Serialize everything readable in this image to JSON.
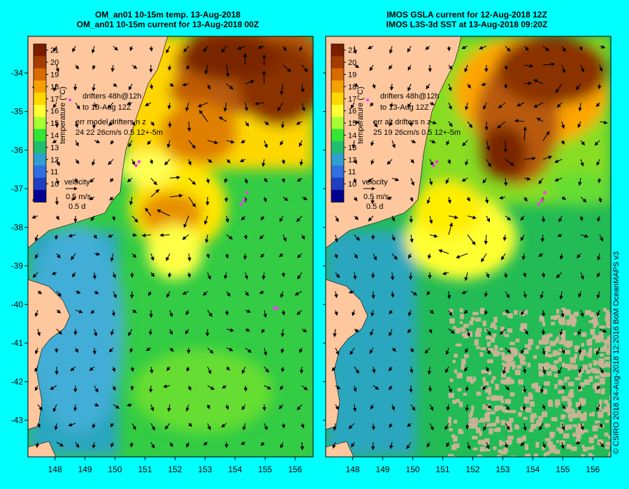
{
  "panels": [
    {
      "title_line1": "OM_an01 10-15m temp. 13-Aug-2018",
      "title_line2": "OM_an01 10-15m current for 13-Aug-2018 00Z",
      "note_drifters": [
        "drifters 48h@12h",
        "to 13-Aug 12Z"
      ],
      "note_err": [
        "err model drifters n  z",
        "24 22 26cm/s 0.5 12+-5m"
      ],
      "velocity_label": [
        "velocity",
        "0.5 m/s",
        "0.5 d"
      ],
      "drifters": [
        {
          "lon": 150.8,
          "lat": -36.3
        },
        {
          "lon": 150.7,
          "lat": -36.4
        },
        {
          "lon": 154.4,
          "lat": -37.1
        },
        {
          "lon": 154.3,
          "lat": -37.3
        },
        {
          "lon": 154.2,
          "lat": -37.4
        },
        {
          "lon": 155.4,
          "lat": -40.1
        },
        {
          "lon": 155.3,
          "lat": -40.1
        }
      ],
      "marker": {
        "lon": 148.5,
        "lat": -34.7
      }
    },
    {
      "title_line1": "IMOS GSLA current for 12-Aug-2018 12Z",
      "title_line2": "IMOS L3S-3d SST at 13-Aug-2018 09:20Z",
      "note_drifters": [
        "drifters 48h@12h",
        "to 13-Aug 12Z"
      ],
      "note_err": [
        "err alt drifters n  z",
        "25 19 26cm/s 0.5 12+-5m"
      ],
      "velocity_label": [
        "velocity",
        "0.5 m/s",
        "0.5 d"
      ],
      "drifters": [
        {
          "lon": 150.8,
          "lat": -36.3
        },
        {
          "lon": 150.7,
          "lat": -36.4
        },
        {
          "lon": 154.4,
          "lat": -37.1
        },
        {
          "lon": 154.3,
          "lat": -37.3
        },
        {
          "lon": 154.2,
          "lat": -37.4
        }
      ],
      "marker": {
        "lon": 148.5,
        "lat": -34.7
      }
    }
  ],
  "colorbar": {
    "label": "temperature (°C)",
    "ticks": [
      "21",
      "20",
      "19",
      "18",
      "17",
      "16",
      "15",
      "14",
      "13",
      "12",
      "11",
      "10"
    ],
    "colors": [
      "#7a1e00",
      "#a53c00",
      "#d96a00",
      "#f5a000",
      "#ffd700",
      "#ffff33",
      "#a6ff33",
      "#33e633",
      "#1fbf6f",
      "#2f9fcf",
      "#2f6fdf",
      "#1f3fbf",
      "#00008f"
    ]
  },
  "x_ticks": [
    "148",
    "149",
    "150",
    "151",
    "152",
    "153",
    "154",
    "155",
    "156"
  ],
  "y_ticks": [
    "-34",
    "-35",
    "-36",
    "-37",
    "-38",
    "-39",
    "-40",
    "-41",
    "-42",
    "-43"
  ],
  "credit": "© CSIRO 2018   24-Aug-2018 12:2016 BoM OceanMAPS v3",
  "colors": {
    "background": "#00ffff",
    "land": "#fec79e",
    "drifter": "#ff33ff",
    "nodata": "#c8b495"
  }
}
